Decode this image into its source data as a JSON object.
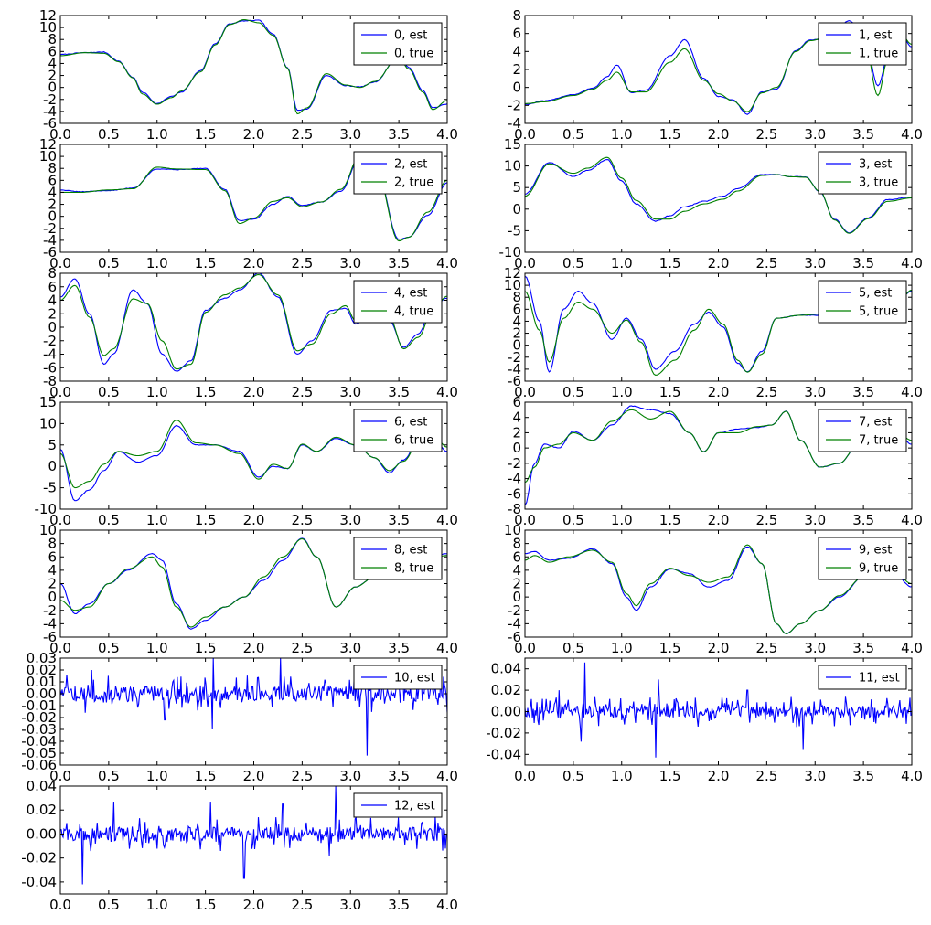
{
  "chart_data": [
    {
      "type": "line",
      "x": [
        0.0,
        0.25,
        0.45,
        0.6,
        0.75,
        0.85,
        1.0,
        1.15,
        1.25,
        1.45,
        1.6,
        1.75,
        1.9,
        2.05,
        2.2,
        2.35,
        2.45,
        2.55,
        2.75,
        2.95,
        3.1,
        3.25,
        3.5,
        3.6,
        3.75,
        3.85,
        4.0
      ],
      "series": [
        {
          "name": "0, est",
          "values": [
            5.5,
            5.8,
            5.9,
            4.4,
            1.7,
            -0.8,
            -2.7,
            -1.5,
            -0.8,
            2.8,
            7.3,
            10.6,
            11.1,
            11.2,
            8.9,
            3.3,
            -3.8,
            -3.6,
            2.0,
            0.3,
            0.1,
            0.9,
            5.2,
            3.4,
            -0.5,
            -3.4,
            -2.8
          ]
        },
        {
          "name": "0, true",
          "values": [
            5.3,
            5.8,
            5.7,
            4.3,
            1.6,
            -1.1,
            -2.8,
            -1.7,
            -0.6,
            2.6,
            7.1,
            10.5,
            11.3,
            10.8,
            8.7,
            3.2,
            -4.4,
            -3.4,
            2.3,
            0.4,
            0.0,
            1.0,
            5.1,
            3.1,
            -0.8,
            -3.7,
            -2.2
          ]
        }
      ],
      "yticks": [
        -6,
        -4,
        -2,
        0,
        2,
        4,
        6,
        8,
        10,
        12
      ],
      "ylim": [
        -6,
        12
      ],
      "xlim": [
        0,
        4
      ]
    },
    {
      "type": "line",
      "x": [
        0.0,
        0.2,
        0.5,
        0.7,
        0.85,
        0.95,
        1.1,
        1.25,
        1.5,
        1.65,
        1.85,
        2.0,
        2.15,
        2.3,
        2.45,
        2.6,
        2.8,
        2.95,
        3.15,
        3.35,
        3.5,
        3.65,
        3.75,
        3.85,
        4.0
      ],
      "series": [
        {
          "name": "1, est",
          "values": [
            -1.9,
            -1.5,
            -0.8,
            -0.1,
            1.2,
            2.5,
            -0.6,
            -0.3,
            3.5,
            5.3,
            1.0,
            -1.0,
            -1.4,
            -3.0,
            -0.5,
            -0.2,
            4.1,
            5.3,
            5.4,
            7.4,
            6.3,
            0.2,
            3.2,
            6.8,
            4.5
          ]
        },
        {
          "name": "1, true",
          "values": [
            -1.8,
            -1.6,
            -0.9,
            -0.2,
            0.8,
            1.7,
            -0.5,
            -0.5,
            2.8,
            4.3,
            0.8,
            -0.7,
            -1.5,
            -2.7,
            -0.6,
            0.0,
            4.0,
            5.2,
            5.7,
            7.2,
            6.0,
            -0.9,
            3.0,
            6.6,
            4.8
          ]
        }
      ],
      "yticks": [
        -4,
        -2,
        0,
        2,
        4,
        6,
        8
      ],
      "ylim": [
        -4,
        8
      ],
      "xlim": [
        0,
        4
      ]
    },
    {
      "type": "line",
      "x": [
        0.0,
        0.2,
        0.5,
        0.75,
        1.0,
        1.2,
        1.5,
        1.7,
        1.85,
        2.0,
        2.2,
        2.35,
        2.5,
        2.7,
        2.9,
        3.1,
        3.25,
        3.5,
        3.6,
        3.8,
        4.0
      ],
      "series": [
        {
          "name": "2, est",
          "values": [
            4.4,
            4.1,
            4.3,
            4.7,
            7.9,
            7.8,
            8.0,
            4.5,
            -0.7,
            -0.5,
            2.0,
            3.3,
            1.8,
            2.4,
            4.2,
            10.0,
            9.2,
            -3.8,
            -3.5,
            0.2,
            5.6
          ]
        },
        {
          "name": "2, true",
          "values": [
            4.0,
            4.0,
            4.4,
            4.6,
            8.2,
            7.9,
            7.8,
            4.3,
            -1.2,
            -0.3,
            2.5,
            3.1,
            1.6,
            2.4,
            4.5,
            10.2,
            8.9,
            -4.1,
            -3.5,
            0.7,
            6.0
          ]
        }
      ],
      "yticks": [
        -6,
        -4,
        -2,
        0,
        2,
        4,
        6,
        8,
        10,
        12
      ],
      "ylim": [
        -6,
        12
      ],
      "xlim": [
        0,
        4
      ]
    },
    {
      "type": "line",
      "x": [
        0.0,
        0.25,
        0.5,
        0.65,
        0.85,
        1.0,
        1.15,
        1.35,
        1.5,
        1.65,
        1.85,
        2.05,
        2.2,
        2.45,
        2.6,
        2.75,
        2.9,
        3.05,
        3.2,
        3.35,
        3.55,
        3.75,
        4.0
      ],
      "series": [
        {
          "name": "3, est",
          "values": [
            3.5,
            10.8,
            7.6,
            9.0,
            11.5,
            6.5,
            1.2,
            -2.8,
            -1.5,
            0.5,
            1.8,
            3.0,
            4.8,
            8.0,
            8.0,
            7.5,
            7.5,
            4.0,
            -2.3,
            -5.5,
            -2.0,
            2.2,
            2.8
          ]
        },
        {
          "name": "3, true",
          "values": [
            3.0,
            10.5,
            8.3,
            9.5,
            12.0,
            7.2,
            2.0,
            -2.3,
            -2.3,
            -0.5,
            1.2,
            2.3,
            4.2,
            7.8,
            8.0,
            7.5,
            7.4,
            4.1,
            -2.5,
            -5.6,
            -2.2,
            1.8,
            2.6
          ]
        }
      ],
      "yticks": [
        -10,
        -5,
        0,
        5,
        10,
        15
      ],
      "ylim": [
        -10,
        15
      ],
      "xlim": [
        0,
        4
      ]
    },
    {
      "type": "line",
      "x": [
        0.0,
        0.15,
        0.3,
        0.45,
        0.55,
        0.75,
        0.9,
        1.05,
        1.2,
        1.35,
        1.5,
        1.7,
        1.85,
        2.05,
        2.25,
        2.45,
        2.6,
        2.8,
        2.95,
        3.05,
        3.25,
        3.4,
        3.55,
        3.7,
        3.85,
        4.0
      ],
      "series": [
        {
          "name": "4, est",
          "values": [
            4.5,
            7.2,
            2.0,
            -5.5,
            -4.0,
            5.5,
            3.5,
            -4.0,
            -6.5,
            -5.0,
            2.5,
            4.3,
            5.5,
            8.0,
            4.5,
            -4.0,
            -2.0,
            2.5,
            2.8,
            0.5,
            2.5,
            1.0,
            -3.0,
            -1.0,
            3.0,
            4.3
          ]
        },
        {
          "name": "4, true",
          "values": [
            4.0,
            6.2,
            1.5,
            -4.2,
            -3.2,
            4.2,
            3.5,
            -2.0,
            -6.2,
            -5.5,
            2.2,
            4.8,
            5.8,
            7.8,
            4.8,
            -3.5,
            -2.5,
            2.0,
            3.2,
            1.0,
            2.8,
            1.5,
            -3.2,
            -1.5,
            2.5,
            4.6
          ]
        }
      ],
      "yticks": [
        -8,
        -6,
        -4,
        -2,
        0,
        2,
        4,
        6,
        8
      ],
      "ylim": [
        -8,
        8
      ],
      "xlim": [
        0,
        4
      ]
    },
    {
      "type": "line",
      "x": [
        0.0,
        0.15,
        0.25,
        0.4,
        0.55,
        0.7,
        0.9,
        1.05,
        1.2,
        1.35,
        1.55,
        1.75,
        1.9,
        2.05,
        2.2,
        2.3,
        2.45,
        2.6,
        2.85,
        3.05,
        3.25,
        3.45,
        3.65,
        3.85,
        4.0
      ],
      "series": [
        {
          "name": "5, est",
          "values": [
            11.5,
            4.0,
            -4.5,
            6.0,
            9.0,
            7.0,
            1.0,
            4.5,
            1.0,
            -4.0,
            -1.0,
            3.5,
            5.5,
            3.0,
            -3.0,
            -4.5,
            -1.0,
            4.5,
            5.0,
            5.0,
            5.5,
            8.0,
            8.5,
            7.5,
            9.0
          ]
        },
        {
          "name": "5, true",
          "values": [
            9.0,
            2.5,
            -2.8,
            4.5,
            7.2,
            6.0,
            2.0,
            4.2,
            0.5,
            -5.0,
            -2.5,
            2.5,
            6.0,
            3.5,
            -2.5,
            -4.5,
            -1.5,
            4.5,
            5.0,
            5.2,
            5.5,
            7.8,
            8.2,
            7.0,
            9.2
          ]
        }
      ],
      "yticks": [
        -6,
        -4,
        -2,
        0,
        2,
        4,
        6,
        8,
        10,
        12
      ],
      "ylim": [
        -6,
        12
      ],
      "xlim": [
        0,
        4
      ]
    },
    {
      "type": "line",
      "x": [
        0.0,
        0.15,
        0.3,
        0.45,
        0.6,
        0.8,
        1.0,
        1.2,
        1.4,
        1.6,
        1.85,
        2.05,
        2.2,
        2.35,
        2.5,
        2.65,
        2.85,
        3.05,
        3.25,
        3.4,
        3.55,
        3.7,
        3.85,
        4.0
      ],
      "series": [
        {
          "name": "6, est",
          "values": [
            4.0,
            -8.0,
            -5.5,
            -1.0,
            3.5,
            1.0,
            2.5,
            9.5,
            5.0,
            5.0,
            3.5,
            -2.5,
            0.0,
            -0.5,
            5.0,
            3.5,
            6.5,
            5.0,
            2.0,
            -1.5,
            1.5,
            6.0,
            6.5,
            3.5
          ]
        },
        {
          "name": "6, true",
          "values": [
            3.0,
            -5.0,
            -3.5,
            0.5,
            3.5,
            2.5,
            3.5,
            10.8,
            5.5,
            5.0,
            3.0,
            -3.0,
            0.5,
            -0.5,
            5.2,
            3.5,
            6.8,
            5.0,
            2.0,
            -1.0,
            1.2,
            5.5,
            7.5,
            4.5
          ]
        }
      ],
      "yticks": [
        -10,
        -5,
        0,
        5,
        10,
        15
      ],
      "ylim": [
        -10,
        15
      ],
      "xlim": [
        0,
        4
      ]
    },
    {
      "type": "line",
      "x": [
        0.0,
        0.1,
        0.2,
        0.35,
        0.5,
        0.7,
        0.9,
        1.1,
        1.3,
        1.5,
        1.7,
        1.85,
        2.0,
        2.2,
        2.4,
        2.55,
        2.7,
        2.85,
        3.05,
        3.25,
        3.45,
        3.65,
        3.85,
        4.0
      ],
      "series": [
        {
          "name": "7, est",
          "values": [
            -7.5,
            -2.0,
            0.5,
            0.0,
            2.2,
            1.0,
            3.0,
            5.5,
            5.0,
            4.5,
            2.0,
            -0.5,
            2.0,
            2.5,
            2.7,
            3.0,
            4.8,
            1.0,
            -2.5,
            -2.0,
            0.5,
            3.0,
            2.0,
            0.5
          ]
        },
        {
          "name": "7, true",
          "values": [
            -4.5,
            -2.5,
            0.0,
            0.5,
            2.0,
            1.0,
            3.5,
            5.0,
            3.8,
            4.8,
            2.0,
            -0.5,
            2.0,
            2.0,
            2.8,
            3.0,
            4.8,
            1.0,
            -2.5,
            -2.0,
            0.5,
            3.0,
            2.0,
            1.0
          ]
        }
      ],
      "yticks": [
        -8,
        -6,
        -4,
        -2,
        0,
        2,
        4,
        6
      ],
      "ylim": [
        -8,
        6
      ],
      "xlim": [
        0,
        4
      ]
    },
    {
      "type": "line",
      "x": [
        0.0,
        0.15,
        0.3,
        0.5,
        0.7,
        0.95,
        1.05,
        1.2,
        1.35,
        1.5,
        1.7,
        1.9,
        2.1,
        2.3,
        2.5,
        2.65,
        2.85,
        3.05,
        3.25,
        3.5,
        3.75,
        4.0
      ],
      "series": [
        {
          "name": "8, est",
          "values": [
            2.0,
            -2.5,
            -1.0,
            2.0,
            4.0,
            6.5,
            5.5,
            -1.0,
            -4.8,
            -3.5,
            -1.5,
            0.0,
            2.5,
            5.5,
            8.8,
            6.0,
            -1.5,
            1.5,
            3.0,
            3.5,
            5.5,
            6.5
          ]
        },
        {
          "name": "8, true",
          "values": [
            -0.5,
            -2.0,
            -1.5,
            2.0,
            4.2,
            6.0,
            4.5,
            -1.5,
            -4.5,
            -3.0,
            -1.5,
            0.0,
            3.0,
            6.0,
            8.7,
            6.0,
            -1.5,
            1.5,
            3.0,
            3.5,
            5.5,
            6.2
          ]
        }
      ],
      "yticks": [
        -6,
        -4,
        -2,
        0,
        2,
        4,
        6,
        8,
        10
      ],
      "ylim": [
        -6,
        10
      ],
      "xlim": [
        0,
        4
      ]
    },
    {
      "type": "line",
      "x": [
        0.0,
        0.1,
        0.25,
        0.45,
        0.7,
        0.9,
        1.05,
        1.15,
        1.3,
        1.5,
        1.7,
        1.9,
        2.1,
        2.3,
        2.45,
        2.6,
        2.7,
        2.85,
        3.05,
        3.25,
        3.5,
        3.75,
        4.0
      ],
      "series": [
        {
          "name": "9, est",
          "values": [
            6.5,
            6.8,
            5.5,
            5.8,
            7.2,
            5.0,
            0.0,
            -2.0,
            1.5,
            4.2,
            3.5,
            1.5,
            2.5,
            7.5,
            5.0,
            -4.0,
            -5.5,
            -4.0,
            -2.0,
            0.0,
            3.0,
            5.0,
            1.5
          ]
        },
        {
          "name": "9, true",
          "values": [
            5.5,
            6.2,
            5.2,
            6.0,
            7.0,
            5.2,
            0.5,
            -1.3,
            2.0,
            4.3,
            3.2,
            2.2,
            3.0,
            7.8,
            5.0,
            -4.0,
            -5.5,
            -4.0,
            -2.0,
            0.2,
            3.0,
            5.0,
            2.0
          ]
        }
      ],
      "yticks": [
        -6,
        -4,
        -2,
        0,
        2,
        4,
        6,
        8,
        10
      ],
      "ylim": [
        -6,
        10
      ],
      "xlim": [
        0,
        4
      ]
    },
    {
      "type": "line",
      "noise_amplitude": 0.009,
      "spikes": [
        [
          1.57,
          -0.03
        ],
        [
          1.58,
          0.03
        ],
        [
          2.28,
          0.03
        ],
        [
          3.17,
          -0.052
        ],
        [
          3.12,
          0.02
        ],
        [
          0.32,
          0.02
        ],
        [
          1.08,
          -0.022
        ]
      ],
      "series": [
        {
          "name": "10, est"
        }
      ],
      "yticks": [
        -0.06,
        -0.05,
        -0.04,
        -0.03,
        -0.02,
        -0.01,
        0.0,
        0.01,
        0.02,
        0.03
      ],
      "ylim": [
        -0.06,
        0.03
      ],
      "xlim": [
        0,
        4
      ]
    },
    {
      "type": "line",
      "noise_amplitude": 0.008,
      "spikes": [
        [
          0.62,
          0.046
        ],
        [
          0.58,
          -0.028
        ],
        [
          1.35,
          -0.043
        ],
        [
          1.38,
          0.03
        ],
        [
          2.88,
          -0.035
        ],
        [
          0.35,
          0.02
        ],
        [
          2.3,
          0.02
        ]
      ],
      "series": [
        {
          "name": "11, est"
        }
      ],
      "yticks": [
        -0.04,
        -0.02,
        0.0,
        0.02,
        0.04
      ],
      "ylim": [
        -0.05,
        0.05
      ],
      "xlim": [
        0,
        4
      ]
    },
    {
      "type": "line",
      "noise_amplitude": 0.008,
      "spikes": [
        [
          0.23,
          -0.042
        ],
        [
          0.55,
          0.027
        ],
        [
          1.55,
          0.027
        ],
        [
          1.9,
          -0.037
        ],
        [
          2.3,
          0.025
        ],
        [
          2.85,
          0.04
        ],
        [
          2.78,
          -0.018
        ]
      ],
      "series": [
        {
          "name": "12, est"
        }
      ],
      "yticks": [
        -0.04,
        -0.02,
        0.0,
        0.02,
        0.04
      ],
      "ylim": [
        -0.05,
        0.04
      ],
      "xlim": [
        0,
        4
      ]
    }
  ],
  "xticks": [
    0.0,
    0.5,
    1.0,
    1.5,
    2.0,
    2.5,
    3.0,
    3.5,
    4.0
  ],
  "colors": {
    "est": "#0000ff",
    "true": "#008000",
    "axes": "#000000",
    "background": "#ffffff"
  }
}
